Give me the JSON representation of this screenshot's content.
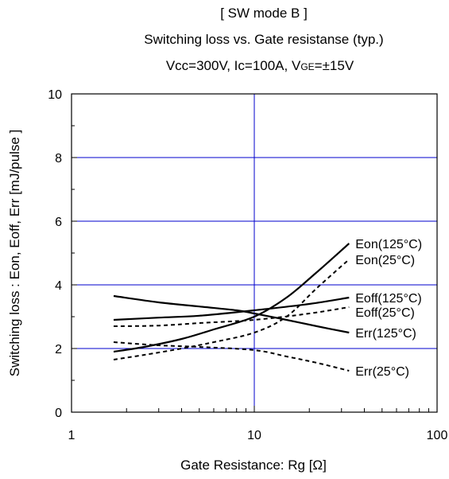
{
  "chart_data": {
    "type": "line",
    "title": "[ SW mode B ]",
    "subtitle": "Switching loss  vs.  Gate resistanse  (typ.)",
    "conditions": {
      "prefix": "Vcc=300V,  Ic=100A,  ",
      "v_main": "V",
      "v_sub": "GE",
      "v_value": "=±15V"
    },
    "xlabel": "Gate Resistance: Rg [Ω]",
    "ylabel": "Switching loss  : Eon, Eoff, Err  [mJ/pulse ]",
    "x_scale": "log",
    "xlim": [
      1,
      100
    ],
    "ylim": [
      0,
      10
    ],
    "x_ticks": [
      "1",
      "10",
      "100"
    ],
    "y_ticks": [
      "0",
      "2",
      "4",
      "6",
      "8",
      "10"
    ],
    "grid": true,
    "grid_color": "#0000cc",
    "series": [
      {
        "name": "Eon(125°C)",
        "style": "solid",
        "x": [
          1.7,
          2.5,
          4,
          6,
          10,
          15,
          22,
          33
        ],
        "y": [
          1.9,
          2.05,
          2.3,
          2.6,
          3.0,
          3.6,
          4.4,
          5.3
        ]
      },
      {
        "name": "Eon(25°C)",
        "style": "dashed",
        "x": [
          1.7,
          2.5,
          4,
          6,
          10,
          15,
          22,
          33
        ],
        "y": [
          1.65,
          1.8,
          2.0,
          2.2,
          2.5,
          3.0,
          3.9,
          4.8
        ]
      },
      {
        "name": "Eoff(125°C)",
        "style": "solid",
        "x": [
          1.7,
          3,
          5,
          10,
          20,
          33
        ],
        "y": [
          2.9,
          2.97,
          3.03,
          3.2,
          3.4,
          3.6
        ]
      },
      {
        "name": "Eoff(25°C)",
        "style": "dashed",
        "x": [
          1.7,
          3,
          5,
          10,
          20,
          33
        ],
        "y": [
          2.7,
          2.72,
          2.8,
          2.9,
          3.1,
          3.3
        ]
      },
      {
        "name": "Err(125°C)",
        "style": "solid",
        "x": [
          1.7,
          3,
          5,
          8,
          10,
          15,
          22,
          33
        ],
        "y": [
          3.65,
          3.45,
          3.32,
          3.2,
          3.1,
          2.9,
          2.7,
          2.5
        ]
      },
      {
        "name": "Err(25°C)",
        "style": "dashed",
        "x": [
          1.7,
          3,
          5,
          10,
          15,
          22,
          33
        ],
        "y": [
          2.2,
          2.1,
          2.05,
          1.95,
          1.75,
          1.55,
          1.3
        ]
      }
    ]
  }
}
